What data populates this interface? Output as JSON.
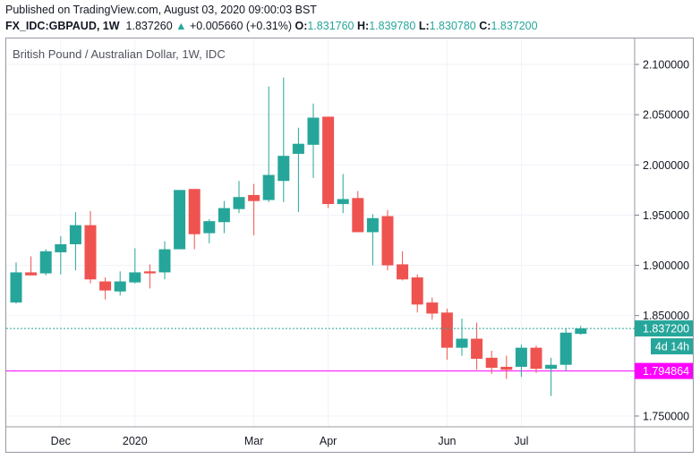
{
  "header": {
    "published": "Published on TradingView.com, August 03, 2020 09:00:03 BST",
    "symbol": "FX_IDC:GBPAUD, 1W",
    "last": "1.837260",
    "change": "+0.005660 (+0.31%)",
    "o_label": "O:",
    "o": "1.831760",
    "h_label": "H:",
    "h": "1.839780",
    "l_label": "L:",
    "l": "1.830780",
    "c_label": "C:",
    "c": "1.837200",
    "up_icon": "triangle-up-icon"
  },
  "colors": {
    "up": "#26a69a",
    "down": "#ef5350",
    "marker": "#ff00ff",
    "grid": "#f0f3fa"
  },
  "chart_data": {
    "type": "candlestick",
    "title": "British Pound / Australian Dollar, 1W, IDC",
    "ylim": [
      1.73,
      2.12
    ],
    "grid": true,
    "y_ticks": [
      "2.100000",
      "2.050000",
      "2.000000",
      "1.950000",
      "1.900000",
      "1.850000",
      "1.750000"
    ],
    "x_ticks": [
      "Dec",
      "2020",
      "Mar",
      "Apr",
      "Jun",
      "Jul"
    ],
    "last_price_label": "1.837200",
    "countdown_label": "4d 14h",
    "horizontal_line": {
      "value": 1.794864,
      "label": "1.794864"
    },
    "ohlc": [
      [
        1.863,
        1.903,
        1.862,
        1.893
      ],
      [
        1.893,
        1.909,
        1.89,
        1.89
      ],
      [
        1.892,
        1.916,
        1.89,
        1.914
      ],
      [
        1.913,
        1.929,
        1.891,
        1.921
      ],
      [
        1.921,
        1.953,
        1.895,
        1.94
      ],
      [
        1.94,
        1.954,
        1.882,
        1.886
      ],
      [
        1.884,
        1.888,
        1.866,
        1.875
      ],
      [
        1.874,
        1.894,
        1.87,
        1.884
      ],
      [
        1.883,
        1.917,
        1.882,
        1.893
      ],
      [
        1.894,
        1.901,
        1.877,
        1.892
      ],
      [
        1.893,
        1.924,
        1.886,
        1.916
      ],
      [
        1.916,
        1.975,
        1.916,
        1.975
      ],
      [
        1.976,
        1.976,
        1.916,
        1.931
      ],
      [
        1.932,
        1.946,
        1.922,
        1.944
      ],
      [
        1.943,
        1.964,
        1.932,
        1.957
      ],
      [
        1.956,
        1.984,
        1.952,
        1.968
      ],
      [
        1.97,
        1.981,
        1.93,
        1.964
      ],
      [
        1.965,
        2.078,
        1.963,
        1.99
      ],
      [
        1.984,
        2.087,
        1.963,
        2.009
      ],
      [
        2.011,
        2.037,
        1.953,
        2.021
      ],
      [
        2.02,
        2.061,
        1.987,
        2.047
      ],
      [
        2.048,
        2.048,
        1.957,
        1.961
      ],
      [
        1.961,
        1.991,
        1.952,
        1.966
      ],
      [
        1.967,
        1.974,
        1.933,
        1.933
      ],
      [
        1.933,
        1.951,
        1.9,
        1.947
      ],
      [
        1.949,
        1.955,
        1.895,
        1.9
      ],
      [
        1.901,
        1.914,
        1.885,
        1.886
      ],
      [
        1.888,
        1.891,
        1.853,
        1.861
      ],
      [
        1.863,
        1.868,
        1.846,
        1.852
      ],
      [
        1.853,
        1.857,
        1.806,
        1.818
      ],
      [
        1.818,
        1.847,
        1.81,
        1.827
      ],
      [
        1.827,
        1.843,
        1.796,
        1.807
      ],
      [
        1.808,
        1.815,
        1.792,
        1.798
      ],
      [
        1.799,
        1.81,
        1.787,
        1.796
      ],
      [
        1.799,
        1.821,
        1.789,
        1.818
      ],
      [
        1.818,
        1.82,
        1.793,
        1.797
      ],
      [
        1.797,
        1.808,
        1.77,
        1.801
      ],
      [
        1.801,
        1.837,
        1.795,
        1.833
      ],
      [
        1.8318,
        1.8398,
        1.8308,
        1.8372
      ]
    ]
  }
}
